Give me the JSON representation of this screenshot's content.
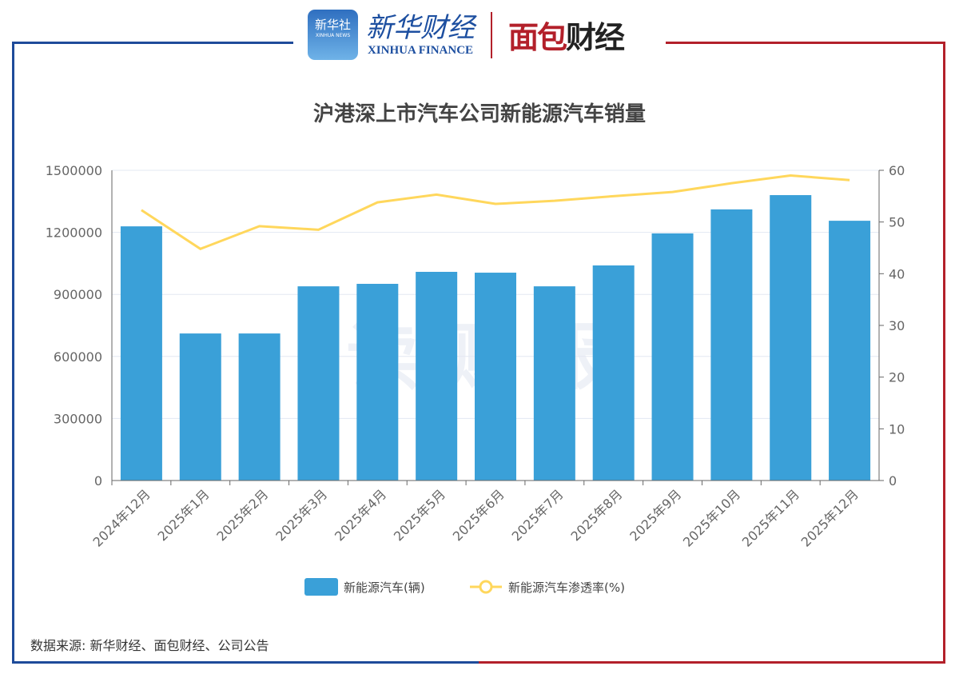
{
  "header": {
    "xinhua_news_cn": "新华社",
    "xinhua_news_en": "XINHUA NEWS",
    "xinhua_finance_cn": "新华财经",
    "xinhua_finance_en": "XINHUA FINANCE",
    "mianbao_a": "面包",
    "mianbao_b": "财经"
  },
  "watermark": "读 财 报",
  "source": "数据来源: 新华财经、面包财经、公司公告",
  "colors": {
    "bar": "#3aa0d8",
    "line": "#ffd75c",
    "frame_blue": "#1e4b9a",
    "frame_red": "#b3202a"
  },
  "chart_data": {
    "type": "bar+line",
    "title": "沪港深上市汽车公司新能源汽车销量",
    "categories": [
      "2024年12月",
      "2025年1月",
      "2025年2月",
      "2025年3月",
      "2025年4月",
      "2025年5月",
      "2025年6月",
      "2025年7月",
      "2025年8月",
      "2025年9月",
      "2025年10月",
      "2025年11月",
      "2025年12月"
    ],
    "series": [
      {
        "name": "新能源汽车(辆)",
        "type": "bar",
        "axis": "left",
        "values": [
          1229000,
          711000,
          711000,
          939000,
          951000,
          1009000,
          1005000,
          939000,
          1040000,
          1195000,
          1311000,
          1380000,
          1256000
        ]
      },
      {
        "name": "新能源汽车渗透率(%)",
        "type": "line",
        "axis": "right",
        "values": [
          52.3,
          44.8,
          49.2,
          48.5,
          53.8,
          55.3,
          53.5,
          54.1,
          55.0,
          55.8,
          57.5,
          59.0,
          58.1
        ]
      }
    ],
    "y_left": {
      "ylim": [
        0,
        1500000
      ],
      "ticks": [
        "0",
        "300000",
        "600000",
        "900000",
        "1200000",
        "1500000"
      ]
    },
    "y_right": {
      "ylim": [
        0,
        60
      ],
      "ticks": [
        "0",
        "10",
        "20",
        "30",
        "40",
        "50",
        "60"
      ]
    },
    "grid": true,
    "legend": "bottom"
  }
}
